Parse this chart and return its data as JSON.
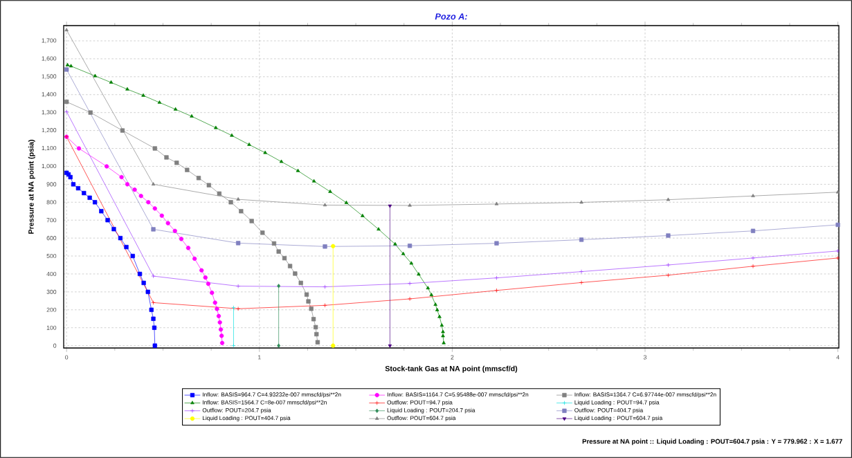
{
  "chart_data": {
    "type": "line",
    "title": "Pozo A:",
    "xlabel": "Stock-tank Gas at NA point (mmscf/d)",
    "ylabel": "Pressure at NA point (psia)",
    "xlim": [
      -0.015,
      4.005
    ],
    "ylim": [
      -13,
      1785
    ],
    "xticks": [
      0,
      1,
      2,
      3,
      4
    ],
    "yticks": [
      {
        "value": 0,
        "label": "0"
      },
      {
        "value": 100,
        "label": "100"
      },
      {
        "value": 200,
        "label": "200"
      },
      {
        "value": 300,
        "label": "300"
      },
      {
        "value": 400,
        "label": "400"
      },
      {
        "value": 500,
        "label": "500"
      },
      {
        "value": 600,
        "label": "600"
      },
      {
        "value": 700,
        "label": "700"
      },
      {
        "value": 800,
        "label": "800"
      },
      {
        "value": 900,
        "label": "900"
      },
      {
        "value": 1000,
        "label": "1,000"
      },
      {
        "value": 1100,
        "label": "1,100"
      },
      {
        "value": 1200,
        "label": "1,200"
      },
      {
        "value": 1300,
        "label": "1,300"
      },
      {
        "value": 1400,
        "label": "1,400"
      },
      {
        "value": 1500,
        "label": "1,500"
      },
      {
        "value": 1600,
        "label": "1,600"
      },
      {
        "value": 1700,
        "label": "1,700"
      }
    ],
    "grid": true,
    "legend": "bottom",
    "annotations": [
      "Pressure at NA point :: Liquid Loading : POUT=604.7 psia : Y = 779.962 : X = 1.677"
    ],
    "series": [
      {
        "name": "Inflow: BASIS=964.7 C=4.93232e-007 mmscfd/psi**2n",
        "color": "#0000ff",
        "marker": "square",
        "x": [
          0,
          0.01,
          0.02,
          0.035,
          0.06,
          0.09,
          0.12,
          0.147,
          0.18,
          0.213,
          0.245,
          0.279,
          0.31,
          0.343,
          0.38,
          0.4,
          0.422,
          0.44,
          0.45,
          0.455,
          0.458
        ],
        "values": [
          964,
          955,
          940,
          900,
          878,
          851,
          825,
          800,
          750,
          700,
          650,
          600,
          550,
          500,
          400,
          350,
          300,
          200,
          150,
          100,
          0
        ]
      },
      {
        "name": "Inflow: BASIS=1164.7 C=5.95488e-007 mmscfd/psi**2n",
        "color": "#ff00ff",
        "marker": "circle",
        "x": [
          0,
          0.064,
          0.208,
          0.285,
          0.315,
          0.353,
          0.386,
          0.424,
          0.458,
          0.494,
          0.526,
          0.562,
          0.595,
          0.631,
          0.664,
          0.7,
          0.72,
          0.735,
          0.754,
          0.77,
          0.78,
          0.789,
          0.795,
          0.8,
          0.804,
          0.807
        ],
        "values": [
          1165,
          1100,
          1000,
          940,
          900,
          870,
          835,
          800,
          765,
          725,
          683,
          640,
          595,
          545,
          485,
          420,
          380,
          345,
          295,
          240,
          205,
          165,
          130,
          90,
          55,
          15
        ]
      },
      {
        "name": "Inflow: BASIS=1364.7 C=6.97744e-007 mmscfd/psi**2n",
        "color": "#808080",
        "marker": "square",
        "x": [
          0,
          0.124,
          0.29,
          0.458,
          0.518,
          0.571,
          0.625,
          0.685,
          0.738,
          0.792,
          0.852,
          0.905,
          0.96,
          1.016,
          1.076,
          1.1,
          1.13,
          1.159,
          1.185,
          1.215,
          1.245,
          1.254,
          1.269,
          1.281,
          1.292,
          1.296,
          1.302
        ],
        "values": [
          1360,
          1300,
          1200,
          1100,
          1050,
          1020,
          980,
          935,
          895,
          848,
          800,
          750,
          695,
          630,
          570,
          525,
          488,
          444,
          402,
          350,
          285,
          247,
          206,
          148,
          103,
          64,
          19
        ]
      },
      {
        "name": "Inflow: BASIS=1564.7 C=8e-007 mmscfd/psi**2n",
        "color": "#008000",
        "marker": "triangle",
        "x": [
          0.005,
          0.023,
          0.148,
          0.231,
          0.315,
          0.398,
          0.482,
          0.565,
          0.649,
          0.774,
          0.857,
          0.947,
          1.03,
          1.114,
          1.2,
          1.283,
          1.367,
          1.451,
          1.535,
          1.618,
          1.704,
          1.746,
          1.788,
          1.826,
          1.874,
          1.892,
          1.913,
          1.922,
          1.934,
          1.946,
          1.952,
          1.952,
          1.956
        ],
        "values": [
          1565,
          1559,
          1504,
          1468,
          1430,
          1395,
          1356,
          1318,
          1279,
          1215,
          1172,
          1121,
          1076,
          1026,
          975,
          917,
          859,
          797,
          724,
          649,
          566,
          512,
          459,
          398,
          321,
          283,
          229,
          199,
          161,
          113,
          77,
          54,
          15
        ]
      },
      {
        "name": "Outflow: POUT=94.7 psia",
        "color": "#ff0000",
        "marker": "cross",
        "x": [
          0,
          0.45,
          0.89,
          1.34,
          1.78,
          2.23,
          2.67,
          3.12,
          3.56,
          4.0
        ],
        "values": [
          1165,
          240,
          206,
          225,
          261,
          308,
          352,
          393,
          443,
          489
        ]
      },
      {
        "name": "Liquid Loading : POUT=94.7 psia",
        "color": "#00e0e0",
        "marker": "cross",
        "x": [
          0.866,
          0.866
        ],
        "values": [
          212,
          0
        ]
      },
      {
        "name": "Outflow: POUT=204.7 psia",
        "color": "#9933ff",
        "marker": "cross",
        "x": [
          0,
          0.45,
          0.89,
          1.34,
          1.78,
          2.23,
          2.67,
          3.12,
          3.56,
          4.0
        ],
        "values": [
          1305,
          388,
          332,
          328,
          347,
          378,
          413,
          450,
          489,
          528
        ]
      },
      {
        "name": "Liquid Loading : POUT=204.7 psia",
        "color": "#2e8b57",
        "marker": "diamond",
        "x": [
          1.1,
          1.1
        ],
        "values": [
          333,
          0
        ]
      },
      {
        "name": "Outflow: POUT=404.7 psia",
        "color": "#8080c0",
        "marker": "square",
        "x": [
          0,
          0.45,
          0.89,
          1.34,
          1.78,
          2.23,
          2.67,
          3.12,
          3.56,
          4.0
        ],
        "values": [
          1540,
          649,
          572,
          553,
          557,
          571,
          591,
          614,
          640,
          674
        ]
      },
      {
        "name": "Liquid Loading : POUT=404.7 psia",
        "color": "#ffff00",
        "marker": "circle",
        "x": [
          1.382,
          1.382
        ],
        "values": [
          555,
          0
        ]
      },
      {
        "name": "Outflow: POUT=604.7 psia",
        "color": "#808080",
        "marker": "triangle",
        "x": [
          0,
          0.45,
          0.89,
          1.34,
          1.78,
          2.23,
          2.67,
          3.12,
          3.56,
          4.0
        ],
        "values": [
          1760,
          900,
          816,
          784,
          782,
          790,
          799,
          814,
          835,
          856
        ]
      },
      {
        "name": "Liquid Loading : POUT=604.7 psia",
        "color": "#4b0082",
        "marker": "triangle-down",
        "x": [
          1.677,
          1.677
        ],
        "values": [
          779.962,
          0
        ]
      }
    ]
  }
}
